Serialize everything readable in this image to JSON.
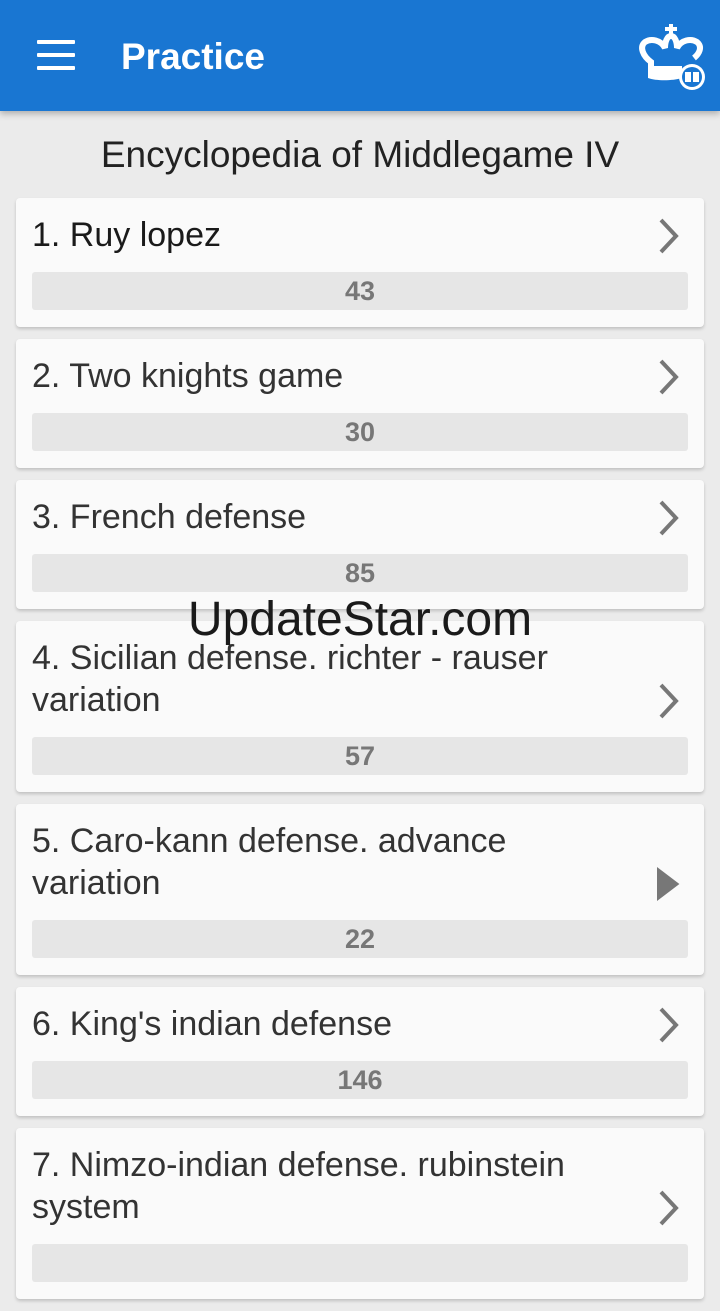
{
  "appbar": {
    "title": "Practice",
    "menu_icon": "hamburger-menu-icon",
    "logo_icon": "chess-king-book-icon",
    "color": "#1976d2"
  },
  "heading": "Encyclopedia of Middlegame IV",
  "items": [
    {
      "title": "1. Ruy lopez",
      "count": "43",
      "progress": 0,
      "icon": "chevron-right"
    },
    {
      "title": "2. Two knights game",
      "count": "30",
      "progress": 0,
      "icon": "chevron-right"
    },
    {
      "title": "3. French defense",
      "count": "85",
      "progress": 0,
      "icon": "chevron-right"
    },
    {
      "title": "4. Sicilian defense.  richter - rauser variation",
      "count": "57",
      "progress": 0,
      "icon": "chevron-right"
    },
    {
      "title": "5. Caro-kann defense.  advance variation",
      "count": "22",
      "progress": 0,
      "icon": "play"
    },
    {
      "title": "6. King's indian defense",
      "count": "146",
      "progress": 0,
      "icon": "chevron-right"
    },
    {
      "title": "7. Nimzo-indian defense.  rubinstein system",
      "count": "",
      "progress": 0,
      "icon": "chevron-right"
    }
  ],
  "watermark": "UpdateStar.com"
}
